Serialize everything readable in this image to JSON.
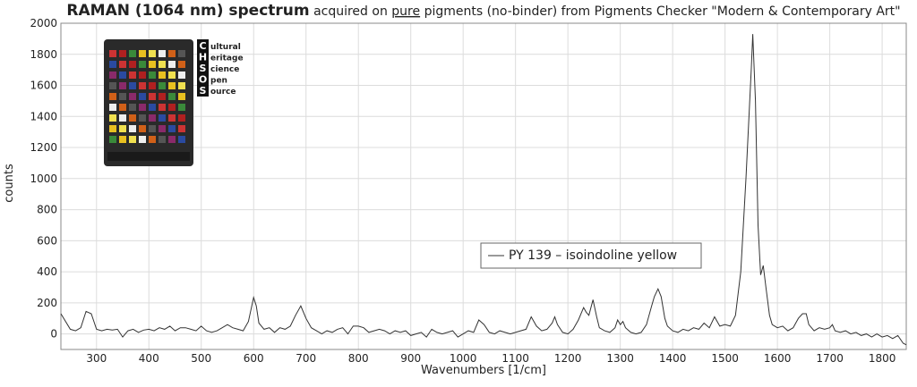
{
  "chart_data": {
    "type": "line",
    "title": {
      "bold": "RAMAN (1064 nm) spectrum",
      "pre": "acquired on",
      "underlined": "pure",
      "post": "pigments (no-binder) from Pigments Checker \"Modern & Contemporary Art\""
    },
    "xlabel": "Wavenumbers [1/cm]",
    "ylabel": "counts",
    "logo": {
      "letters": [
        "C",
        "H",
        "S",
        "O",
        "S"
      ],
      "words": [
        "ultural",
        "eritage",
        "cience",
        "pen",
        "ource"
      ]
    },
    "xlim": [
      232,
      1846
    ],
    "ylim": [
      -100,
      2000
    ],
    "xticks": [
      300,
      400,
      500,
      600,
      700,
      800,
      900,
      1000,
      1100,
      1200,
      1300,
      1400,
      1500,
      1600,
      1700,
      1800
    ],
    "yticks": [
      0,
      200,
      400,
      600,
      800,
      1000,
      1200,
      1400,
      1600,
      1800,
      2000
    ],
    "grid": true,
    "legend": "center-right",
    "series": [
      {
        "name": "PY 139 – isoindoline yellow",
        "color": "#333333",
        "x": [
          232,
          250,
          260,
          270,
          280,
          290,
          300,
          310,
          320,
          330,
          340,
          350,
          360,
          370,
          380,
          390,
          400,
          410,
          420,
          430,
          440,
          450,
          460,
          470,
          480,
          490,
          500,
          510,
          520,
          530,
          540,
          550,
          560,
          570,
          580,
          590,
          600,
          605,
          610,
          620,
          630,
          640,
          650,
          660,
          670,
          680,
          690,
          700,
          710,
          720,
          730,
          740,
          750,
          760,
          770,
          780,
          790,
          800,
          810,
          820,
          830,
          840,
          850,
          860,
          870,
          880,
          890,
          900,
          910,
          920,
          930,
          940,
          950,
          960,
          970,
          980,
          990,
          1000,
          1010,
          1020,
          1030,
          1040,
          1050,
          1060,
          1070,
          1080,
          1090,
          1100,
          1110,
          1120,
          1130,
          1140,
          1150,
          1160,
          1170,
          1175,
          1180,
          1190,
          1200,
          1210,
          1220,
          1230,
          1235,
          1240,
          1248,
          1255,
          1260,
          1270,
          1280,
          1290,
          1295,
          1300,
          1305,
          1310,
          1320,
          1330,
          1340,
          1350,
          1360,
          1365,
          1372,
          1378,
          1385,
          1390,
          1400,
          1410,
          1420,
          1430,
          1440,
          1450,
          1460,
          1470,
          1480,
          1490,
          1500,
          1510,
          1520,
          1530,
          1540,
          1550,
          1553,
          1558,
          1563,
          1568,
          1573,
          1578,
          1585,
          1590,
          1600,
          1610,
          1620,
          1630,
          1640,
          1648,
          1655,
          1660,
          1670,
          1680,
          1690,
          1700,
          1705,
          1710,
          1720,
          1730,
          1740,
          1750,
          1760,
          1770,
          1780,
          1790,
          1800,
          1810,
          1820,
          1830,
          1840,
          1846
        ],
        "values": [
          130,
          30,
          20,
          40,
          145,
          130,
          30,
          20,
          30,
          25,
          30,
          -20,
          20,
          30,
          10,
          25,
          30,
          20,
          40,
          30,
          50,
          20,
          40,
          40,
          30,
          20,
          50,
          20,
          10,
          20,
          40,
          60,
          40,
          30,
          20,
          80,
          235,
          180,
          70,
          30,
          40,
          10,
          40,
          30,
          50,
          120,
          180,
          100,
          40,
          20,
          0,
          20,
          10,
          30,
          40,
          0,
          50,
          50,
          40,
          10,
          20,
          30,
          20,
          0,
          20,
          10,
          20,
          -10,
          0,
          10,
          -20,
          30,
          10,
          0,
          10,
          20,
          -20,
          0,
          20,
          10,
          90,
          60,
          10,
          0,
          20,
          10,
          0,
          10,
          20,
          30,
          110,
          50,
          20,
          30,
          70,
          110,
          60,
          10,
          0,
          30,
          90,
          170,
          140,
          120,
          220,
          110,
          40,
          20,
          10,
          40,
          90,
          60,
          80,
          40,
          10,
          0,
          10,
          60,
          180,
          240,
          290,
          240,
          100,
          50,
          20,
          10,
          30,
          20,
          40,
          30,
          70,
          40,
          110,
          50,
          60,
          50,
          120,
          400,
          1000,
          1700,
          1930,
          1500,
          700,
          380,
          440,
          300,
          120,
          60,
          40,
          50,
          20,
          40,
          100,
          130,
          130,
          60,
          20,
          40,
          30,
          40,
          60,
          20,
          10,
          20,
          0,
          10,
          -10,
          0,
          -20,
          0,
          -20,
          -10,
          -30,
          -10,
          -60,
          -70
        ]
      }
    ]
  }
}
